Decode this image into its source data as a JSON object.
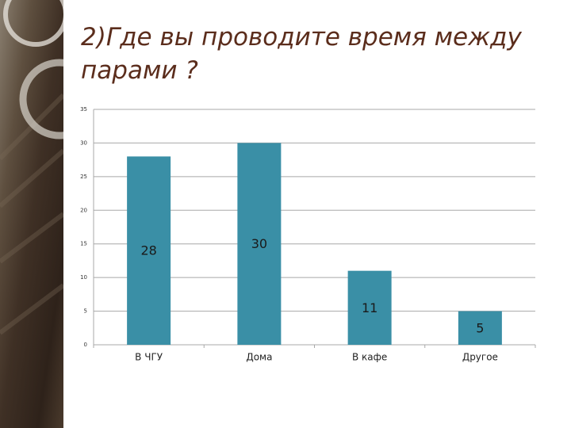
{
  "chart_data": {
    "type": "bar",
    "title": "2)Где вы проводите время между парами ?",
    "categories": [
      "В ЧГУ",
      "Дома",
      "В кафе",
      "Другое"
    ],
    "values": [
      28,
      30,
      11,
      5
    ],
    "color": "#3a8fa6",
    "ylim": [
      0,
      35
    ],
    "yticks": [
      0,
      5,
      10,
      15,
      20,
      25,
      30,
      35
    ],
    "grid": true
  }
}
